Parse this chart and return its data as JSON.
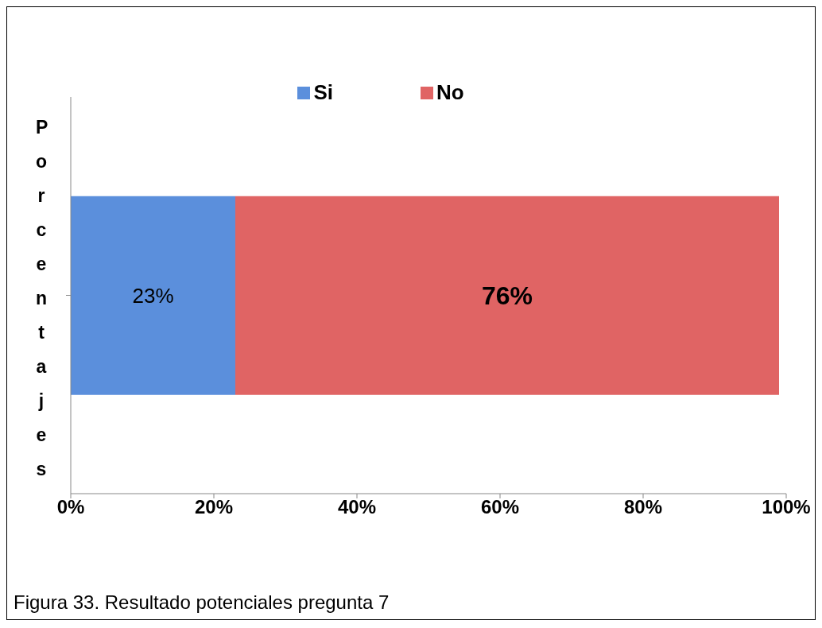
{
  "chart_data": {
    "type": "bar",
    "orientation": "horizontal",
    "stacked": true,
    "categories": [
      null
    ],
    "series": [
      {
        "name": "Si",
        "color": "#5b8fdc",
        "values": [
          23
        ],
        "value_labels": [
          "23%"
        ]
      },
      {
        "name": "No",
        "color": "#e06464",
        "values": [
          76
        ],
        "value_labels": [
          "76%"
        ]
      }
    ],
    "xlim": [
      0,
      100
    ],
    "xticks": [
      {
        "value": 0,
        "label": "0%"
      },
      {
        "value": 20,
        "label": "20%"
      },
      {
        "value": 40,
        "label": "40%"
      },
      {
        "value": 60,
        "label": "60%"
      },
      {
        "value": 80,
        "label": "80%"
      },
      {
        "value": 100,
        "label": "100%"
      }
    ],
    "ylabel": "Porcentajes",
    "legend": "top",
    "grid": false,
    "annotations": [
      "Figura 33. Resultado potenciales pregunta 7"
    ]
  }
}
